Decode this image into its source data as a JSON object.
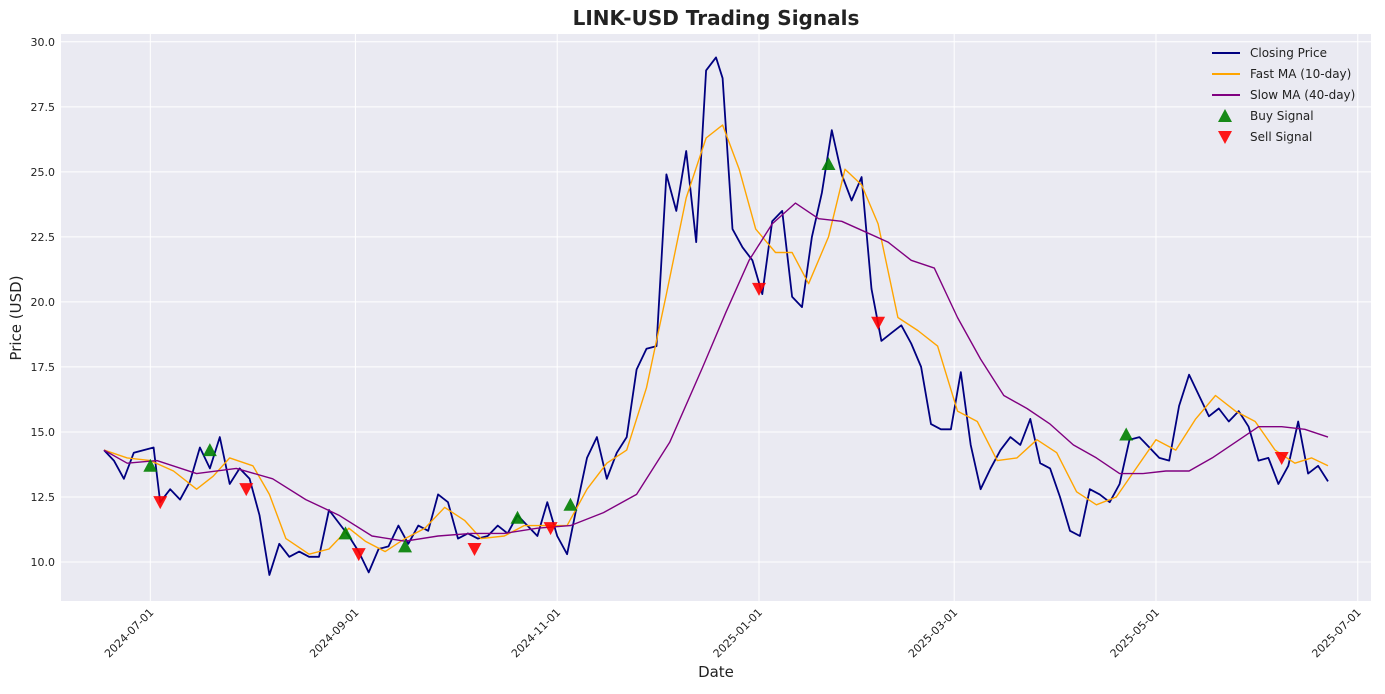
{
  "chart_data": {
    "type": "line",
    "title": "LINK-USD Trading Signals",
    "xlabel": "Date",
    "ylabel": "Price (USD)",
    "x_ticks": [
      "2024-07-01",
      "2024-09-01",
      "2024-11-01",
      "2025-01-01",
      "2025-03-01",
      "2025-05-01",
      "2025-07-01"
    ],
    "y_ticks": [
      "10.0",
      "12.5",
      "15.0",
      "17.5",
      "20.0",
      "22.5",
      "25.0",
      "27.5",
      "30.0"
    ],
    "xlim": [
      "2024-06-04",
      "2025-07-05"
    ],
    "ylim": [
      8.5,
      30.3
    ],
    "grid": true,
    "legend_position": "top-right",
    "series": [
      {
        "name": "Closing Price",
        "color": "#000080",
        "points": [
          [
            "2024-06-17",
            14.3
          ],
          [
            "2024-06-20",
            13.9
          ],
          [
            "2024-06-23",
            13.2
          ],
          [
            "2024-06-26",
            14.2
          ],
          [
            "2024-06-29",
            14.3
          ],
          [
            "2024-07-02",
            14.4
          ],
          [
            "2024-07-04",
            12.3
          ],
          [
            "2024-07-07",
            12.8
          ],
          [
            "2024-07-10",
            12.4
          ],
          [
            "2024-07-13",
            13.1
          ],
          [
            "2024-07-16",
            14.4
          ],
          [
            "2024-07-19",
            13.6
          ],
          [
            "2024-07-22",
            14.8
          ],
          [
            "2024-07-25",
            13.0
          ],
          [
            "2024-07-28",
            13.6
          ],
          [
            "2024-07-31",
            13.2
          ],
          [
            "2024-08-03",
            11.8
          ],
          [
            "2024-08-06",
            9.5
          ],
          [
            "2024-08-09",
            10.7
          ],
          [
            "2024-08-12",
            10.2
          ],
          [
            "2024-08-15",
            10.4
          ],
          [
            "2024-08-18",
            10.2
          ],
          [
            "2024-08-21",
            10.2
          ],
          [
            "2024-08-24",
            12.0
          ],
          [
            "2024-08-27",
            11.5
          ],
          [
            "2024-08-30",
            11.0
          ],
          [
            "2024-09-02",
            10.4
          ],
          [
            "2024-09-05",
            9.6
          ],
          [
            "2024-09-08",
            10.5
          ],
          [
            "2024-09-11",
            10.6
          ],
          [
            "2024-09-14",
            11.4
          ],
          [
            "2024-09-17",
            10.7
          ],
          [
            "2024-09-20",
            11.4
          ],
          [
            "2024-09-23",
            11.2
          ],
          [
            "2024-09-26",
            12.6
          ],
          [
            "2024-09-29",
            12.3
          ],
          [
            "2024-10-02",
            10.9
          ],
          [
            "2024-10-05",
            11.1
          ],
          [
            "2024-10-08",
            10.9
          ],
          [
            "2024-10-11",
            11.0
          ],
          [
            "2024-10-14",
            11.4
          ],
          [
            "2024-10-17",
            11.1
          ],
          [
            "2024-10-20",
            11.8
          ],
          [
            "2024-10-23",
            11.4
          ],
          [
            "2024-10-26",
            11.0
          ],
          [
            "2024-10-29",
            12.3
          ],
          [
            "2024-11-01",
            11.0
          ],
          [
            "2024-11-04",
            10.3
          ],
          [
            "2024-11-07",
            12.2
          ],
          [
            "2024-11-10",
            14.0
          ],
          [
            "2024-11-13",
            14.8
          ],
          [
            "2024-11-16",
            13.2
          ],
          [
            "2024-11-19",
            14.2
          ],
          [
            "2024-11-22",
            14.8
          ],
          [
            "2024-11-25",
            17.4
          ],
          [
            "2024-11-28",
            18.2
          ],
          [
            "2024-12-01",
            18.3
          ],
          [
            "2024-12-04",
            24.9
          ],
          [
            "2024-12-07",
            23.5
          ],
          [
            "2024-12-10",
            25.8
          ],
          [
            "2024-12-13",
            22.3
          ],
          [
            "2024-12-16",
            28.9
          ],
          [
            "2024-12-19",
            29.4
          ],
          [
            "2024-12-21",
            28.6
          ],
          [
            "2024-12-24",
            22.8
          ],
          [
            "2024-12-27",
            22.1
          ],
          [
            "2024-12-30",
            21.6
          ],
          [
            "2025-01-02",
            20.3
          ],
          [
            "2025-01-05",
            23.1
          ],
          [
            "2025-01-08",
            23.5
          ],
          [
            "2025-01-11",
            20.2
          ],
          [
            "2025-01-14",
            19.8
          ],
          [
            "2025-01-17",
            22.5
          ],
          [
            "2025-01-20",
            24.2
          ],
          [
            "2025-01-23",
            26.6
          ],
          [
            "2025-01-26",
            24.9
          ],
          [
            "2025-01-29",
            23.9
          ],
          [
            "2025-02-01",
            24.8
          ],
          [
            "2025-02-04",
            20.5
          ],
          [
            "2025-02-07",
            18.5
          ],
          [
            "2025-02-10",
            18.8
          ],
          [
            "2025-02-13",
            19.1
          ],
          [
            "2025-02-16",
            18.4
          ],
          [
            "2025-02-19",
            17.5
          ],
          [
            "2025-02-22",
            15.3
          ],
          [
            "2025-02-25",
            15.1
          ],
          [
            "2025-02-28",
            15.1
          ],
          [
            "2025-03-03",
            17.3
          ],
          [
            "2025-03-06",
            14.5
          ],
          [
            "2025-03-09",
            12.8
          ],
          [
            "2025-03-12",
            13.6
          ],
          [
            "2025-03-15",
            14.3
          ],
          [
            "2025-03-18",
            14.8
          ],
          [
            "2025-03-21",
            14.5
          ],
          [
            "2025-03-24",
            15.5
          ],
          [
            "2025-03-27",
            13.8
          ],
          [
            "2025-03-30",
            13.6
          ],
          [
            "2025-04-02",
            12.5
          ],
          [
            "2025-04-05",
            11.2
          ],
          [
            "2025-04-08",
            11.0
          ],
          [
            "2025-04-11",
            12.8
          ],
          [
            "2025-04-14",
            12.6
          ],
          [
            "2025-04-17",
            12.3
          ],
          [
            "2025-04-20",
            13.0
          ],
          [
            "2025-04-23",
            14.7
          ],
          [
            "2025-04-26",
            14.8
          ],
          [
            "2025-04-29",
            14.4
          ],
          [
            "2025-05-02",
            14.0
          ],
          [
            "2025-05-05",
            13.9
          ],
          [
            "2025-05-08",
            16.0
          ],
          [
            "2025-05-11",
            17.2
          ],
          [
            "2025-05-14",
            16.4
          ],
          [
            "2025-05-17",
            15.6
          ],
          [
            "2025-05-20",
            15.9
          ],
          [
            "2025-05-23",
            15.4
          ],
          [
            "2025-05-26",
            15.8
          ],
          [
            "2025-05-29",
            15.2
          ],
          [
            "2025-06-01",
            13.9
          ],
          [
            "2025-06-04",
            14.0
          ],
          [
            "2025-06-07",
            13.0
          ],
          [
            "2025-06-10",
            13.7
          ],
          [
            "2025-06-13",
            15.4
          ],
          [
            "2025-06-16",
            13.4
          ],
          [
            "2025-06-19",
            13.7
          ],
          [
            "2025-06-22",
            13.1
          ]
        ]
      },
      {
        "name": "Fast MA (10-day)",
        "color": "#ffa500",
        "points": [
          [
            "2024-06-17",
            14.3
          ],
          [
            "2024-06-24",
            14.0
          ],
          [
            "2024-07-01",
            13.9
          ],
          [
            "2024-07-08",
            13.5
          ],
          [
            "2024-07-15",
            12.8
          ],
          [
            "2024-07-20",
            13.3
          ],
          [
            "2024-07-25",
            14.0
          ],
          [
            "2024-08-01",
            13.7
          ],
          [
            "2024-08-06",
            12.6
          ],
          [
            "2024-08-11",
            10.9
          ],
          [
            "2024-08-18",
            10.3
          ],
          [
            "2024-08-24",
            10.5
          ],
          [
            "2024-08-30",
            11.3
          ],
          [
            "2024-09-04",
            10.8
          ],
          [
            "2024-09-10",
            10.4
          ],
          [
            "2024-09-16",
            10.9
          ],
          [
            "2024-09-22",
            11.3
          ],
          [
            "2024-09-28",
            12.1
          ],
          [
            "2024-10-04",
            11.6
          ],
          [
            "2024-10-09",
            10.9
          ],
          [
            "2024-10-16",
            11.0
          ],
          [
            "2024-10-22",
            11.4
          ],
          [
            "2024-10-29",
            11.4
          ],
          [
            "2024-11-04",
            11.4
          ],
          [
            "2024-11-10",
            12.8
          ],
          [
            "2024-11-16",
            13.8
          ],
          [
            "2024-11-22",
            14.3
          ],
          [
            "2024-11-28",
            16.7
          ],
          [
            "2024-12-04",
            20.3
          ],
          [
            "2024-12-10",
            24.0
          ],
          [
            "2024-12-16",
            26.3
          ],
          [
            "2024-12-21",
            26.8
          ],
          [
            "2024-12-26",
            25.1
          ],
          [
            "2024-12-31",
            22.8
          ],
          [
            "2025-01-06",
            21.9
          ],
          [
            "2025-01-11",
            21.9
          ],
          [
            "2025-01-16",
            20.7
          ],
          [
            "2025-01-22",
            22.5
          ],
          [
            "2025-01-27",
            25.1
          ],
          [
            "2025-02-01",
            24.5
          ],
          [
            "2025-02-06",
            23.0
          ],
          [
            "2025-02-12",
            19.4
          ],
          [
            "2025-02-18",
            18.9
          ],
          [
            "2025-02-24",
            18.3
          ],
          [
            "2025-03-02",
            15.8
          ],
          [
            "2025-03-08",
            15.4
          ],
          [
            "2025-03-14",
            13.9
          ],
          [
            "2025-03-20",
            14.0
          ],
          [
            "2025-03-26",
            14.7
          ],
          [
            "2025-04-01",
            14.2
          ],
          [
            "2025-04-07",
            12.7
          ],
          [
            "2025-04-13",
            12.2
          ],
          [
            "2025-04-19",
            12.5
          ],
          [
            "2025-04-25",
            13.6
          ],
          [
            "2025-05-01",
            14.7
          ],
          [
            "2025-05-07",
            14.3
          ],
          [
            "2025-05-13",
            15.5
          ],
          [
            "2025-05-19",
            16.4
          ],
          [
            "2025-05-25",
            15.8
          ],
          [
            "2025-05-31",
            15.4
          ],
          [
            "2025-06-06",
            14.3
          ],
          [
            "2025-06-12",
            13.8
          ],
          [
            "2025-06-17",
            14.0
          ],
          [
            "2025-06-22",
            13.7
          ]
        ]
      },
      {
        "name": "Slow MA (40-day)",
        "color": "#800080",
        "points": [
          [
            "2024-06-17",
            14.3
          ],
          [
            "2024-06-24",
            13.8
          ],
          [
            "2024-07-03",
            13.9
          ],
          [
            "2024-07-15",
            13.4
          ],
          [
            "2024-07-27",
            13.6
          ],
          [
            "2024-08-07",
            13.2
          ],
          [
            "2024-08-17",
            12.4
          ],
          [
            "2024-08-27",
            11.8
          ],
          [
            "2024-09-06",
            11.0
          ],
          [
            "2024-09-16",
            10.8
          ],
          [
            "2024-09-26",
            11.0
          ],
          [
            "2024-10-06",
            11.1
          ],
          [
            "2024-10-16",
            11.1
          ],
          [
            "2024-10-26",
            11.3
          ],
          [
            "2024-11-05",
            11.4
          ],
          [
            "2024-11-15",
            11.9
          ],
          [
            "2024-11-25",
            12.6
          ],
          [
            "2024-12-05",
            14.6
          ],
          [
            "2024-12-15",
            17.5
          ],
          [
            "2024-12-22",
            19.6
          ],
          [
            "2024-12-29",
            21.6
          ],
          [
            "2025-01-05",
            23.0
          ],
          [
            "2025-01-12",
            23.8
          ],
          [
            "2025-01-19",
            23.2
          ],
          [
            "2025-01-26",
            23.1
          ],
          [
            "2025-02-02",
            22.7
          ],
          [
            "2025-02-09",
            22.3
          ],
          [
            "2025-02-16",
            21.6
          ],
          [
            "2025-02-23",
            21.3
          ],
          [
            "2025-03-02",
            19.4
          ],
          [
            "2025-03-09",
            17.8
          ],
          [
            "2025-03-16",
            16.4
          ],
          [
            "2025-03-23",
            15.9
          ],
          [
            "2025-03-30",
            15.3
          ],
          [
            "2025-04-06",
            14.5
          ],
          [
            "2025-04-13",
            14.0
          ],
          [
            "2025-04-20",
            13.4
          ],
          [
            "2025-04-27",
            13.4
          ],
          [
            "2025-05-04",
            13.5
          ],
          [
            "2025-05-11",
            13.5
          ],
          [
            "2025-05-18",
            14.0
          ],
          [
            "2025-05-25",
            14.6
          ],
          [
            "2025-06-01",
            15.2
          ],
          [
            "2025-06-08",
            15.2
          ],
          [
            "2025-06-15",
            15.1
          ],
          [
            "2025-06-22",
            14.8
          ]
        ]
      },
      {
        "name": "Buy Signal",
        "color": "#008000",
        "marker": "triangle-up",
        "points": [
          [
            "2024-07-01",
            13.7
          ],
          [
            "2024-07-19",
            14.3
          ],
          [
            "2024-08-29",
            11.1
          ],
          [
            "2024-09-16",
            10.6
          ],
          [
            "2024-10-20",
            11.7
          ],
          [
            "2024-11-05",
            12.2
          ],
          [
            "2025-01-22",
            25.3
          ],
          [
            "2025-04-22",
            14.9
          ]
        ]
      },
      {
        "name": "Sell Signal",
        "color": "#ff0000",
        "marker": "triangle-down",
        "points": [
          [
            "2024-07-04",
            12.3
          ],
          [
            "2024-07-30",
            12.8
          ],
          [
            "2024-09-02",
            10.3
          ],
          [
            "2024-10-07",
            10.5
          ],
          [
            "2024-10-30",
            11.3
          ],
          [
            "2025-01-01",
            20.5
          ],
          [
            "2025-02-06",
            19.2
          ],
          [
            "2025-06-08",
            14.0
          ]
        ]
      }
    ]
  }
}
